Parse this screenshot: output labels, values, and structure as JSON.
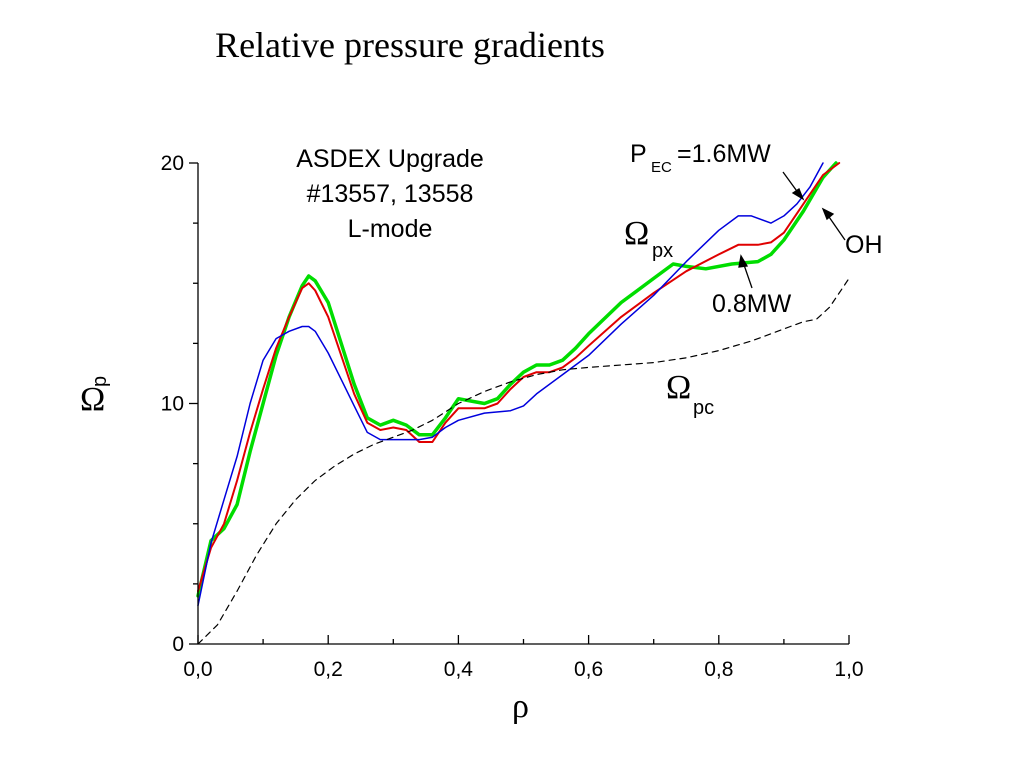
{
  "title": "Relative pressure gradients",
  "chart_data": {
    "type": "line",
    "xlabel": "ρ",
    "ylabel": {
      "main": "Ω",
      "sub": "p"
    },
    "xlim": [
      0.0,
      1.0
    ],
    "ylim": [
      0,
      20
    ],
    "x_ticks": [
      "0,0",
      "0,2",
      "0,4",
      "0,6",
      "0,8",
      "1,0"
    ],
    "y_ticks": [
      "0",
      "10",
      "20"
    ],
    "annotations": {
      "box": [
        "ASDEX Upgrade",
        "#13557, 13558",
        "L-mode"
      ],
      "omega_px": {
        "main": "Ω",
        "sub": "px"
      },
      "omega_pc": {
        "main": "Ω",
        "sub": "pc"
      },
      "p_ec": {
        "main": "P",
        "sub": "EC",
        "rest": "=1.6MW"
      },
      "oh": "OH",
      "mw08": "0.8MW"
    },
    "series": [
      {
        "color": "#00dd00",
        "width": 3.5,
        "dash": false,
        "points": [
          [
            0.0,
            2.0
          ],
          [
            0.02,
            4.3
          ],
          [
            0.04,
            4.8
          ],
          [
            0.06,
            5.8
          ],
          [
            0.08,
            8.0
          ],
          [
            0.1,
            10.0
          ],
          [
            0.12,
            12.0
          ],
          [
            0.14,
            13.6
          ],
          [
            0.16,
            14.9
          ],
          [
            0.17,
            15.3
          ],
          [
            0.18,
            15.1
          ],
          [
            0.2,
            14.2
          ],
          [
            0.22,
            12.5
          ],
          [
            0.24,
            10.8
          ],
          [
            0.26,
            9.4
          ],
          [
            0.28,
            9.1
          ],
          [
            0.3,
            9.3
          ],
          [
            0.32,
            9.1
          ],
          [
            0.34,
            8.7
          ],
          [
            0.36,
            8.7
          ],
          [
            0.38,
            9.4
          ],
          [
            0.4,
            10.2
          ],
          [
            0.42,
            10.1
          ],
          [
            0.44,
            10.0
          ],
          [
            0.46,
            10.2
          ],
          [
            0.48,
            10.8
          ],
          [
            0.5,
            11.3
          ],
          [
            0.52,
            11.6
          ],
          [
            0.54,
            11.6
          ],
          [
            0.56,
            11.8
          ],
          [
            0.58,
            12.3
          ],
          [
            0.6,
            12.9
          ],
          [
            0.65,
            14.2
          ],
          [
            0.7,
            15.2
          ],
          [
            0.73,
            15.8
          ],
          [
            0.75,
            15.7
          ],
          [
            0.78,
            15.6
          ],
          [
            0.82,
            15.8
          ],
          [
            0.86,
            15.9
          ],
          [
            0.88,
            16.2
          ],
          [
            0.9,
            16.8
          ],
          [
            0.93,
            18.0
          ],
          [
            0.96,
            19.4
          ],
          [
            0.98,
            20.0
          ]
        ]
      },
      {
        "color": "#e00000",
        "width": 2,
        "dash": false,
        "points": [
          [
            0.0,
            2.2
          ],
          [
            0.02,
            4.0
          ],
          [
            0.04,
            5.0
          ],
          [
            0.06,
            6.8
          ],
          [
            0.08,
            8.8
          ],
          [
            0.1,
            10.6
          ],
          [
            0.12,
            12.3
          ],
          [
            0.14,
            13.6
          ],
          [
            0.16,
            14.8
          ],
          [
            0.17,
            15.0
          ],
          [
            0.18,
            14.7
          ],
          [
            0.2,
            13.6
          ],
          [
            0.22,
            12.0
          ],
          [
            0.24,
            10.4
          ],
          [
            0.26,
            9.2
          ],
          [
            0.28,
            8.9
          ],
          [
            0.3,
            9.0
          ],
          [
            0.32,
            8.9
          ],
          [
            0.34,
            8.4
          ],
          [
            0.36,
            8.4
          ],
          [
            0.38,
            9.2
          ],
          [
            0.4,
            9.8
          ],
          [
            0.42,
            9.8
          ],
          [
            0.44,
            9.8
          ],
          [
            0.46,
            10.0
          ],
          [
            0.48,
            10.6
          ],
          [
            0.5,
            11.1
          ],
          [
            0.52,
            11.3
          ],
          [
            0.54,
            11.3
          ],
          [
            0.56,
            11.5
          ],
          [
            0.58,
            11.9
          ],
          [
            0.6,
            12.4
          ],
          [
            0.65,
            13.6
          ],
          [
            0.7,
            14.6
          ],
          [
            0.75,
            15.5
          ],
          [
            0.8,
            16.2
          ],
          [
            0.83,
            16.6
          ],
          [
            0.86,
            16.6
          ],
          [
            0.88,
            16.7
          ],
          [
            0.9,
            17.1
          ],
          [
            0.93,
            18.3
          ],
          [
            0.96,
            19.5
          ],
          [
            0.985,
            20.0
          ]
        ]
      },
      {
        "color": "#0000dd",
        "width": 1.5,
        "dash": false,
        "points": [
          [
            0.0,
            1.6
          ],
          [
            0.02,
            4.2
          ],
          [
            0.04,
            6.0
          ],
          [
            0.06,
            7.8
          ],
          [
            0.08,
            10.0
          ],
          [
            0.1,
            11.8
          ],
          [
            0.12,
            12.7
          ],
          [
            0.14,
            13.0
          ],
          [
            0.16,
            13.2
          ],
          [
            0.17,
            13.2
          ],
          [
            0.18,
            13.0
          ],
          [
            0.2,
            12.1
          ],
          [
            0.22,
            11.0
          ],
          [
            0.24,
            9.9
          ],
          [
            0.26,
            8.8
          ],
          [
            0.28,
            8.5
          ],
          [
            0.3,
            8.5
          ],
          [
            0.32,
            8.5
          ],
          [
            0.34,
            8.5
          ],
          [
            0.36,
            8.6
          ],
          [
            0.38,
            9.0
          ],
          [
            0.4,
            9.3
          ],
          [
            0.44,
            9.6
          ],
          [
            0.48,
            9.7
          ],
          [
            0.5,
            9.9
          ],
          [
            0.52,
            10.4
          ],
          [
            0.56,
            11.2
          ],
          [
            0.6,
            12.0
          ],
          [
            0.65,
            13.3
          ],
          [
            0.7,
            14.5
          ],
          [
            0.75,
            15.9
          ],
          [
            0.8,
            17.2
          ],
          [
            0.83,
            17.8
          ],
          [
            0.85,
            17.8
          ],
          [
            0.88,
            17.5
          ],
          [
            0.9,
            17.8
          ],
          [
            0.92,
            18.3
          ],
          [
            0.94,
            19.0
          ],
          [
            0.96,
            20.0
          ]
        ]
      },
      {
        "color": "#000000",
        "width": 1.2,
        "dash": true,
        "points": [
          [
            0.0,
            0.0
          ],
          [
            0.03,
            0.8
          ],
          [
            0.06,
            2.2
          ],
          [
            0.09,
            3.7
          ],
          [
            0.12,
            5.0
          ],
          [
            0.15,
            6.0
          ],
          [
            0.18,
            6.8
          ],
          [
            0.21,
            7.4
          ],
          [
            0.24,
            7.9
          ],
          [
            0.27,
            8.3
          ],
          [
            0.3,
            8.6
          ],
          [
            0.33,
            8.9
          ],
          [
            0.36,
            9.3
          ],
          [
            0.4,
            10.0
          ],
          [
            0.44,
            10.5
          ],
          [
            0.48,
            10.9
          ],
          [
            0.52,
            11.2
          ],
          [
            0.56,
            11.4
          ],
          [
            0.6,
            11.5
          ],
          [
            0.65,
            11.6
          ],
          [
            0.7,
            11.7
          ],
          [
            0.75,
            11.9
          ],
          [
            0.8,
            12.2
          ],
          [
            0.85,
            12.6
          ],
          [
            0.88,
            12.9
          ],
          [
            0.91,
            13.2
          ],
          [
            0.93,
            13.4
          ],
          [
            0.95,
            13.5
          ],
          [
            0.97,
            14.0
          ],
          [
            0.99,
            14.8
          ],
          [
            1.0,
            15.2
          ]
        ]
      }
    ]
  }
}
